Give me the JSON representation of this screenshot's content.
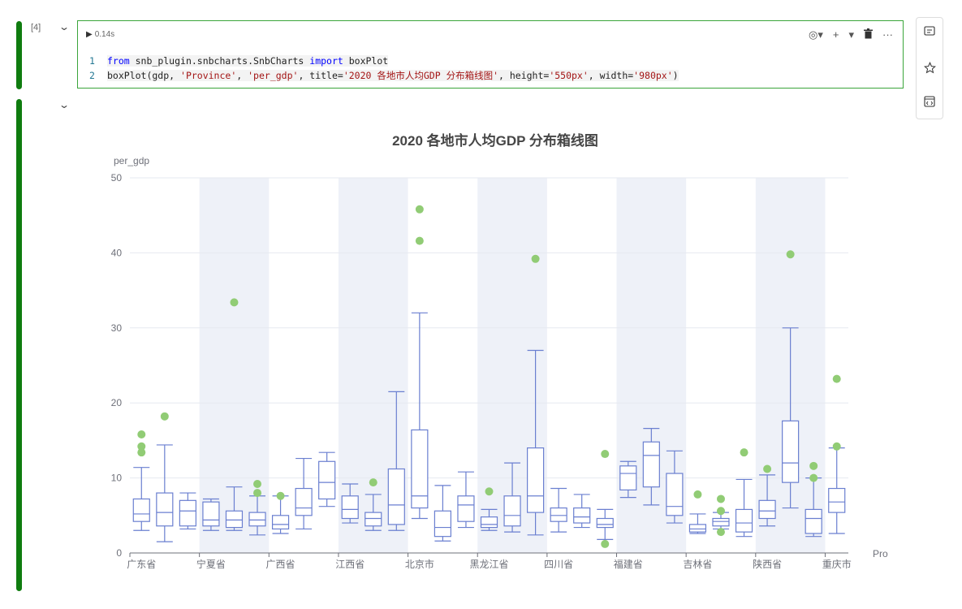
{
  "cells": [
    {
      "exec_count": "[4]",
      "run_time": "0.14s",
      "code_lines": [
        {
          "num": "1",
          "parts": [
            {
              "t": "from",
              "c": "kw"
            },
            {
              "t": " snb_plugin.snbcharts.SnbCharts ",
              "c": "plain"
            },
            {
              "t": "import",
              "c": "kw"
            },
            {
              "t": " boxPlot",
              "c": "plain"
            }
          ]
        },
        {
          "num": "2",
          "parts": [
            {
              "t": "boxPlot(gdp, ",
              "c": "plain"
            },
            {
              "t": "'Province'",
              "c": "str"
            },
            {
              "t": ", ",
              "c": "plain"
            },
            {
              "t": "'per_gdp'",
              "c": "str"
            },
            {
              "t": ", title=",
              "c": "plain"
            },
            {
              "t": "'2020 各地市人均GDP 分布箱线图'",
              "c": "str"
            },
            {
              "t": ", height=",
              "c": "plain"
            },
            {
              "t": "'550px'",
              "c": "str"
            },
            {
              "t": ", width=",
              "c": "plain"
            },
            {
              "t": "'980px'",
              "c": "str"
            },
            {
              "t": ")",
              "c": "plain"
            }
          ]
        }
      ]
    }
  ],
  "toolbar": {
    "eye": "◎▾",
    "add": "+",
    "dropdown": "▾",
    "delete": "🗑",
    "more": "···"
  },
  "side_panel": [
    "comment-icon",
    "star-icon",
    "code-icon"
  ],
  "chart_data": {
    "type": "boxplot",
    "title": "2020 各地市人均GDP 分布箱线图",
    "ylabel": "per_gdp",
    "xlabel": "Pro",
    "ylim": [
      0,
      50
    ],
    "yticks": [
      0,
      10,
      20,
      30,
      40,
      50
    ],
    "grid": true,
    "x_tick_labels": [
      "广东省",
      "宁夏省",
      "广西省",
      "江西省",
      "北京市",
      "黑龙江省",
      "四川省",
      "福建省",
      "吉林省",
      "陕西省",
      "重庆市"
    ],
    "colors": {
      "box": "#6a7fd0",
      "outlier": "#91cc75",
      "band": "#eef1f8"
    },
    "boxes": [
      {
        "min": 3.0,
        "q1": 4.2,
        "median": 5.2,
        "q3": 7.2,
        "max": 11.4,
        "outliers": [
          13.4,
          14.2,
          15.8
        ]
      },
      {
        "min": 1.5,
        "q1": 3.6,
        "median": 5.4,
        "q3": 8.0,
        "max": 14.4,
        "outliers": [
          18.2
        ]
      },
      {
        "min": 3.2,
        "q1": 3.6,
        "median": 5.6,
        "q3": 7.0,
        "max": 8.0,
        "outliers": []
      },
      {
        "min": 3.0,
        "q1": 3.6,
        "median": 4.4,
        "q3": 6.8,
        "max": 7.2,
        "outliers": []
      },
      {
        "min": 3.0,
        "q1": 3.4,
        "median": 4.4,
        "q3": 5.6,
        "max": 8.8,
        "outliers": [
          33.4
        ]
      },
      {
        "min": 2.4,
        "q1": 3.6,
        "median": 4.4,
        "q3": 5.4,
        "max": 7.6,
        "outliers": [
          8.0,
          9.2
        ]
      },
      {
        "min": 2.6,
        "q1": 3.2,
        "median": 3.8,
        "q3": 5.0,
        "max": 7.6,
        "outliers": [
          7.6
        ]
      },
      {
        "min": 3.2,
        "q1": 5.0,
        "median": 6.0,
        "q3": 8.6,
        "max": 12.6,
        "outliers": []
      },
      {
        "min": 6.2,
        "q1": 7.2,
        "median": 9.4,
        "q3": 12.2,
        "max": 13.4,
        "outliers": []
      },
      {
        "min": 4.0,
        "q1": 4.6,
        "median": 5.8,
        "q3": 7.6,
        "max": 9.2,
        "outliers": []
      },
      {
        "min": 3.0,
        "q1": 3.6,
        "median": 4.6,
        "q3": 5.4,
        "max": 7.8,
        "outliers": [
          9.4
        ]
      },
      {
        "min": 3.0,
        "q1": 3.8,
        "median": 6.4,
        "q3": 11.2,
        "max": 21.5,
        "outliers": []
      },
      {
        "min": 4.6,
        "q1": 6.0,
        "median": 7.6,
        "q3": 16.4,
        "max": 32.0,
        "outliers": [
          41.6,
          45.8
        ]
      },
      {
        "min": 1.6,
        "q1": 2.2,
        "median": 3.4,
        "q3": 5.6,
        "max": 9.0,
        "outliers": []
      },
      {
        "min": 3.4,
        "q1": 4.2,
        "median": 6.4,
        "q3": 7.6,
        "max": 10.8,
        "outliers": []
      },
      {
        "min": 3.0,
        "q1": 3.4,
        "median": 3.8,
        "q3": 4.8,
        "max": 5.8,
        "outliers": [
          8.2
        ]
      },
      {
        "min": 2.8,
        "q1": 3.6,
        "median": 5.0,
        "q3": 7.6,
        "max": 12.0,
        "outliers": []
      },
      {
        "min": 2.4,
        "q1": 5.4,
        "median": 7.6,
        "q3": 14.0,
        "max": 27.0,
        "outliers": [
          39.2
        ]
      },
      {
        "min": 2.8,
        "q1": 4.2,
        "median": 5.0,
        "q3": 6.0,
        "max": 8.6,
        "outliers": []
      },
      {
        "min": 3.4,
        "q1": 4.0,
        "median": 4.8,
        "q3": 6.0,
        "max": 7.8,
        "outliers": []
      },
      {
        "min": 1.8,
        "q1": 3.4,
        "median": 3.8,
        "q3": 4.6,
        "max": 5.8,
        "outliers": [
          1.2,
          13.2
        ]
      },
      {
        "min": 7.4,
        "q1": 8.4,
        "median": 10.6,
        "q3": 11.6,
        "max": 12.2,
        "outliers": []
      },
      {
        "min": 6.4,
        "q1": 8.8,
        "median": 13.0,
        "q3": 14.8,
        "max": 16.6,
        "outliers": []
      },
      {
        "min": 4.0,
        "q1": 5.0,
        "median": 6.2,
        "q3": 10.6,
        "max": 13.6,
        "outliers": []
      },
      {
        "min": 2.6,
        "q1": 2.8,
        "median": 3.2,
        "q3": 3.8,
        "max": 5.2,
        "outliers": [
          7.8
        ]
      },
      {
        "min": 3.2,
        "q1": 3.6,
        "median": 4.2,
        "q3": 4.6,
        "max": 5.4,
        "outliers": [
          2.8,
          5.6,
          7.2
        ]
      },
      {
        "min": 2.2,
        "q1": 2.8,
        "median": 4.0,
        "q3": 5.8,
        "max": 9.8,
        "outliers": [
          13.4
        ]
      },
      {
        "min": 3.6,
        "q1": 4.6,
        "median": 5.6,
        "q3": 7.0,
        "max": 10.4,
        "outliers": [
          11.2
        ]
      },
      {
        "min": 6.0,
        "q1": 9.4,
        "median": 12.0,
        "q3": 17.6,
        "max": 30.0,
        "outliers": [
          39.8
        ]
      },
      {
        "min": 2.2,
        "q1": 2.6,
        "median": 4.6,
        "q3": 5.8,
        "max": 10.0,
        "outliers": [
          10.0,
          11.6
        ]
      },
      {
        "min": 2.6,
        "q1": 5.4,
        "median": 6.8,
        "q3": 8.6,
        "max": 14.0,
        "outliers": [
          14.2,
          23.2
        ]
      }
    ]
  }
}
